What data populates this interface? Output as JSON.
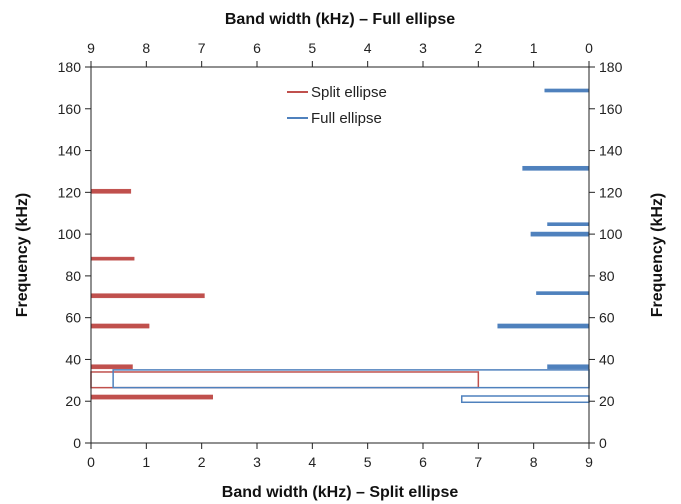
{
  "chart_data": {
    "type": "bar",
    "orientation": "horizontal",
    "x_bottom_label": "Band width (kHz) – Split ellipse",
    "x_top_label": "Band width (kHz) – Full ellipse",
    "y_label_left": "Frequency (kHz)",
    "y_label_right": "Frequency (kHz)",
    "xlim": [
      0,
      9
    ],
    "ylim": [
      0,
      180
    ],
    "x_ticks": [
      0,
      1,
      2,
      3,
      4,
      5,
      6,
      7,
      8,
      9
    ],
    "x_top_ticks": [
      9,
      8,
      7,
      6,
      5,
      4,
      3,
      2,
      1,
      0
    ],
    "y_ticks": [
      0,
      20,
      40,
      60,
      80,
      100,
      120,
      140,
      160,
      180
    ],
    "top_axis_reversed": true,
    "grid": false,
    "legend_position": "top-center",
    "series": [
      {
        "name": "Split ellipse",
        "color": "#c0504d",
        "axis": "bottom",
        "bars": [
          {
            "freq_low": 21.0,
            "freq_high": 23.0,
            "width": 2.2
          },
          {
            "freq_low": 26.5,
            "freq_high": 34.0,
            "width": 7.0
          },
          {
            "freq_low": 35.5,
            "freq_high": 37.5,
            "width": 0.75
          },
          {
            "freq_low": 55.0,
            "freq_high": 57.0,
            "width": 1.05
          },
          {
            "freq_low": 69.5,
            "freq_high": 71.5,
            "width": 2.05
          },
          {
            "freq_low": 87.5,
            "freq_high": 89.0,
            "width": 0.78
          },
          {
            "freq_low": 119.5,
            "freq_high": 121.5,
            "width": 0.72
          }
        ]
      },
      {
        "name": "Full ellipse",
        "color": "#4f81bd",
        "axis": "top",
        "bars": [
          {
            "freq_low": 19.5,
            "freq_high": 22.5,
            "width": 2.3
          },
          {
            "freq_low": 26.5,
            "freq_high": 35.0,
            "width": 8.6
          },
          {
            "freq_low": 35.5,
            "freq_high": 37.5,
            "width": 0.75
          },
          {
            "freq_low": 55.0,
            "freq_high": 57.0,
            "width": 1.65
          },
          {
            "freq_low": 71.0,
            "freq_high": 72.5,
            "width": 0.95
          },
          {
            "freq_low": 99.0,
            "freq_high": 101.0,
            "width": 1.05
          },
          {
            "freq_low": 104.0,
            "freq_high": 105.5,
            "width": 0.75
          },
          {
            "freq_low": 130.5,
            "freq_high": 132.5,
            "width": 1.2
          },
          {
            "freq_low": 168.0,
            "freq_high": 169.5,
            "width": 0.8
          }
        ]
      }
    ]
  }
}
